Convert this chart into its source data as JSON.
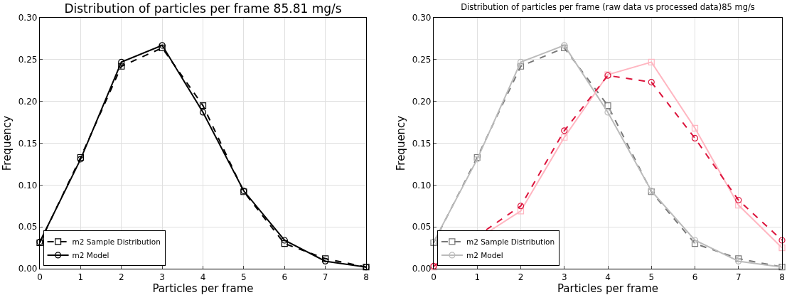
{
  "chart_data": [
    {
      "type": "line",
      "title": "Distribution of particles per frame 85.81 mg/s",
      "xlabel": "Particles per frame",
      "ylabel": "Frequency",
      "x": [
        0,
        1,
        2,
        3,
        4,
        5,
        6,
        7,
        8
      ],
      "xlim": [
        0,
        8
      ],
      "xticks": [
        0,
        1,
        2,
        3,
        4,
        5,
        6,
        7,
        8
      ],
      "ylim": [
        0,
        0.3
      ],
      "yticks": [
        {
          "value": 0,
          "label": "0.00"
        },
        {
          "value": 0.05,
          "label": "0.05"
        },
        {
          "value": 0.1,
          "label": "0.10"
        },
        {
          "value": 0.15,
          "label": "0.15"
        },
        {
          "value": 0.2,
          "label": "0.20"
        },
        {
          "value": 0.25,
          "label": "0.25"
        },
        {
          "value": 0.3,
          "label": "0.30"
        }
      ],
      "grid": true,
      "legend": "bottom left",
      "series": [
        {
          "name": "m2 Sample Distribution",
          "color": "#000000",
          "marker": "square",
          "line_style": "dashed",
          "values": [
            0.031,
            0.133,
            0.242,
            0.264,
            0.195,
            0.092,
            0.03,
            0.012,
            0.002
          ]
        },
        {
          "name": "m2 Model",
          "color": "#000000",
          "marker": "circle",
          "line_style": "solid",
          "values": [
            0.032,
            0.131,
            0.247,
            0.267,
            0.187,
            0.093,
            0.034,
            0.009,
            0.002
          ]
        }
      ]
    },
    {
      "type": "line",
      "title": "Distribution of particles per frame (raw data vs processed data)85 mg/s",
      "xlabel": "Particles per frame",
      "ylabel": "Frequency",
      "x": [
        0,
        1,
        2,
        3,
        4,
        5,
        6,
        7,
        8
      ],
      "xlim": [
        0,
        8
      ],
      "xticks": [
        0,
        1,
        2,
        3,
        4,
        5,
        6,
        7,
        8
      ],
      "ylim": [
        0,
        0.3
      ],
      "yticks": [
        {
          "value": 0,
          "label": "0.00"
        },
        {
          "value": 0.05,
          "label": "0.05"
        },
        {
          "value": 0.1,
          "label": "0.10"
        },
        {
          "value": 0.15,
          "label": "0.15"
        },
        {
          "value": 0.2,
          "label": "0.20"
        },
        {
          "value": 0.25,
          "label": "0.25"
        },
        {
          "value": 0.3,
          "label": "0.30"
        }
      ],
      "grid": true,
      "legend": "bottom left",
      "series": [
        {
          "name": "m2 Sample Distribution",
          "color": "#777777",
          "marker": "square",
          "line_style": "dashed",
          "values": [
            0.031,
            0.133,
            0.242,
            0.264,
            0.195,
            0.092,
            0.03,
            0.012,
            0.002
          ]
        },
        {
          "name": "m2 Model",
          "color": "#bbbbbb",
          "marker": "circle",
          "line_style": "solid",
          "values": [
            0.032,
            0.131,
            0.247,
            0.267,
            0.187,
            0.093,
            0.034,
            0.009,
            0.002
          ]
        },
        {
          "color": "#ffb6c1",
          "marker": "square",
          "line_style": "solid",
          "values": [
            0.002,
            null,
            0.069,
            0.157,
            0.232,
            0.247,
            0.168,
            0.076,
            0.025
          ]
        },
        {
          "color": "#dc143c",
          "marker": "circle",
          "line_style": "dashed",
          "values": [
            0.003,
            null,
            0.075,
            0.165,
            0.231,
            0.223,
            0.156,
            0.082,
            0.034
          ]
        }
      ]
    }
  ]
}
